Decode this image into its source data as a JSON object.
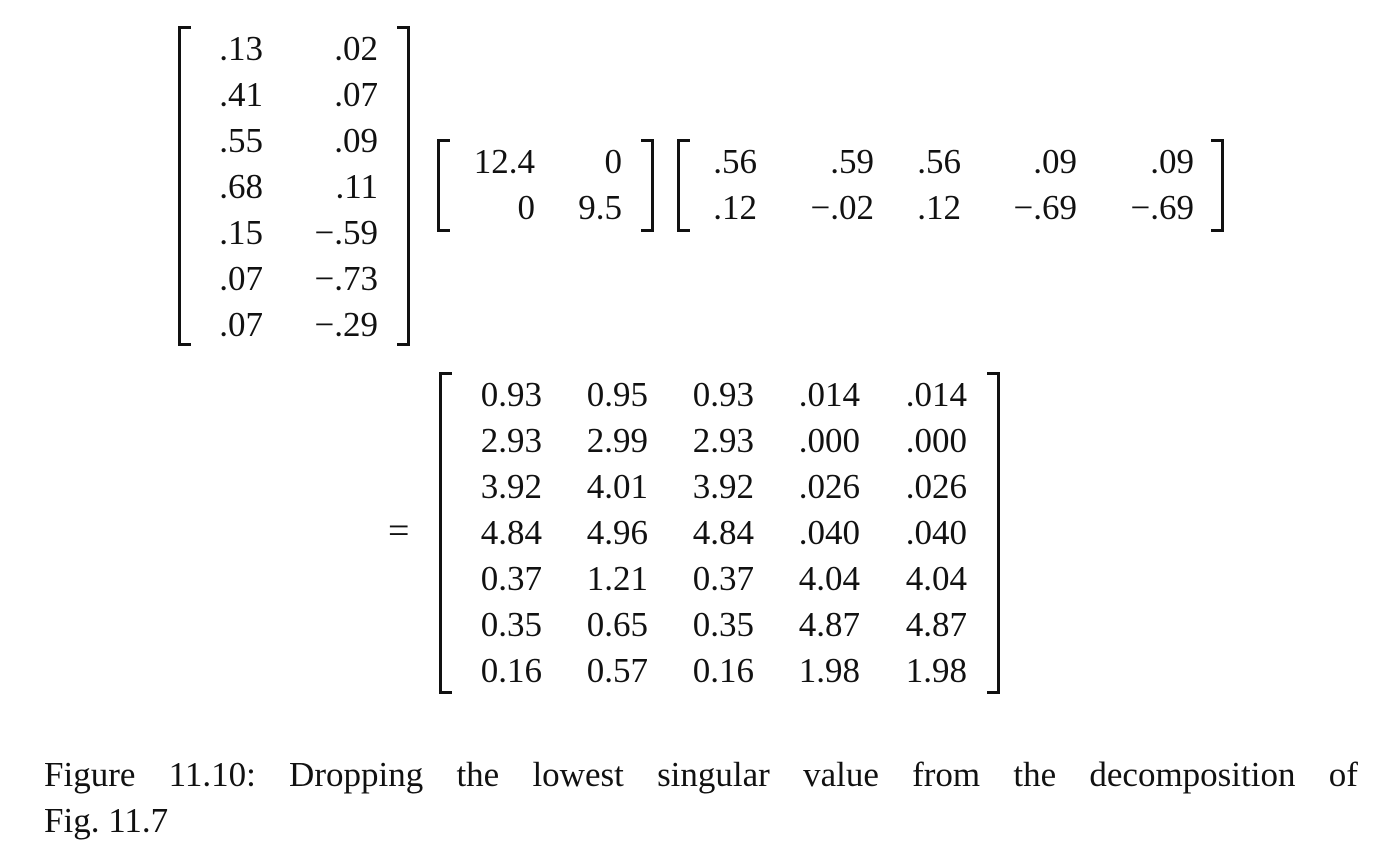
{
  "matrix_u": [
    [
      ".13",
      ".02"
    ],
    [
      ".41",
      ".07"
    ],
    [
      ".55",
      ".09"
    ],
    [
      ".68",
      ".11"
    ],
    [
      ".15",
      "−.59"
    ],
    [
      ".07",
      "−.73"
    ],
    [
      ".07",
      "−.29"
    ]
  ],
  "matrix_sigma": [
    [
      "12.4",
      "0"
    ],
    [
      "0",
      "9.5"
    ]
  ],
  "matrix_vt": [
    [
      ".56",
      ".59",
      ".56",
      ".09",
      ".09"
    ],
    [
      ".12",
      "−.02",
      ".12",
      "−.69",
      "−.69"
    ]
  ],
  "equals_sign": "=",
  "matrix_result": [
    [
      "0.93",
      "0.95",
      "0.93",
      ".014",
      ".014"
    ],
    [
      "2.93",
      "2.99",
      "2.93",
      ".000",
      ".000"
    ],
    [
      "3.92",
      "4.01",
      "3.92",
      ".026",
      ".026"
    ],
    [
      "4.84",
      "4.96",
      "4.84",
      ".040",
      ".040"
    ],
    [
      "0.37",
      "1.21",
      "0.37",
      "4.04",
      "4.04"
    ],
    [
      "0.35",
      "0.65",
      "0.35",
      "4.87",
      "4.87"
    ],
    [
      "0.16",
      "0.57",
      "0.16",
      "1.98",
      "1.98"
    ]
  ],
  "caption": {
    "line1_words": [
      "Figure",
      "11.10:",
      "Dropping",
      "the",
      "lowest",
      "singular",
      "value",
      "from",
      "the",
      "decomposition",
      "of"
    ],
    "line2": "Fig. 11.7"
  }
}
